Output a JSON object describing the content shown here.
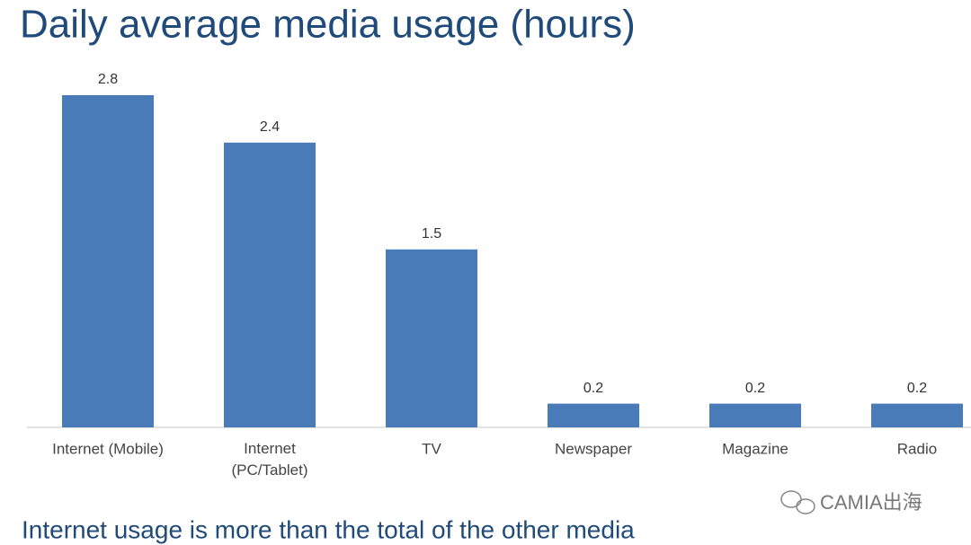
{
  "chart_data": {
    "type": "bar",
    "title": "Daily average media usage (hours)",
    "categories": [
      "Internet (Mobile)",
      "Internet\n(PC/Tablet)",
      "TV",
      "Newspaper",
      "Magazine",
      "Radio"
    ],
    "values": [
      2.8,
      2.4,
      1.5,
      0.2,
      0.2,
      0.2
    ],
    "color": "#4a7bb9",
    "subtitle": "Internet usage is more than the total of the other media",
    "watermark": "CAMIA出海"
  }
}
